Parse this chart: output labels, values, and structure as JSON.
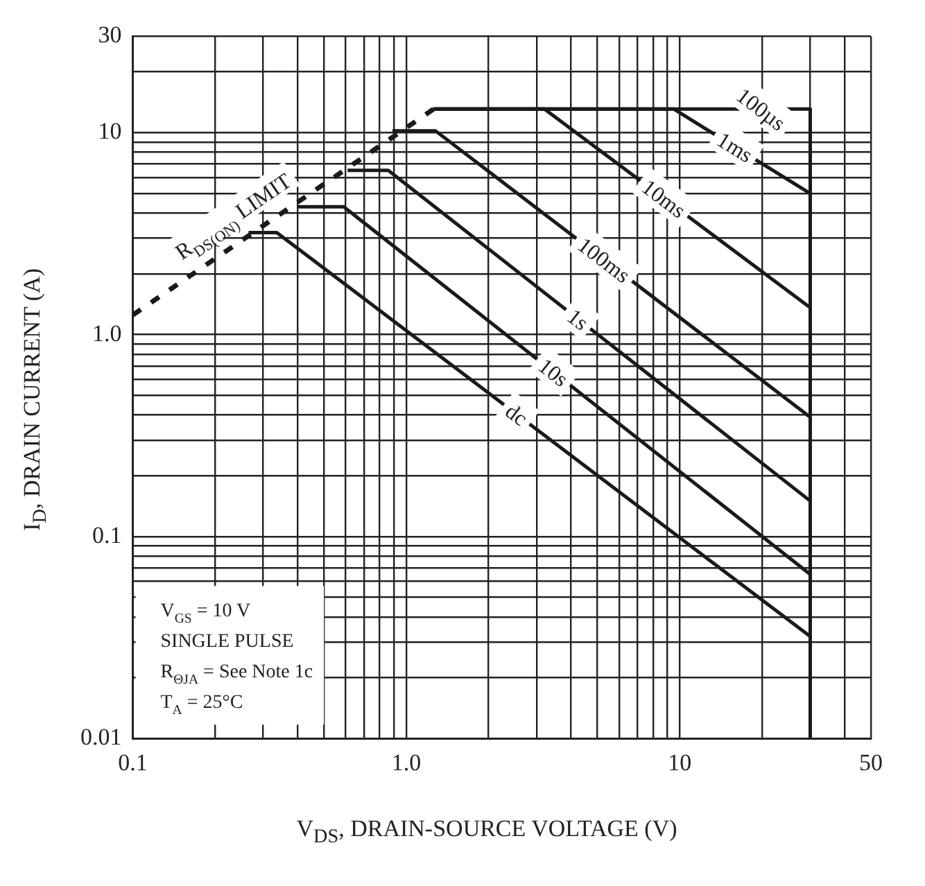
{
  "chart_data": {
    "type": "line",
    "xlabel": "V$_{DS}$, DRAIN-SOURCE VOLTAGE (V)",
    "ylabel": "I$_{D}$, DRAIN CURRENT (A)",
    "log": "xy",
    "grid": true,
    "legend": false,
    "marker": "none",
    "xlim": [
      0.1,
      50
    ],
    "ylim": [
      0.01,
      30
    ],
    "xticks": [
      {
        "value": 0.1,
        "label": "0.1"
      },
      {
        "value": 0.2,
        "label": null
      },
      {
        "value": 0.3,
        "label": null
      },
      {
        "value": 0.4,
        "label": null
      },
      {
        "value": 0.5,
        "label": null
      },
      {
        "value": 0.6,
        "label": null
      },
      {
        "value": 0.7,
        "label": null
      },
      {
        "value": 0.8,
        "label": null
      },
      {
        "value": 0.9,
        "label": null
      },
      {
        "value": 1,
        "label": "1.0"
      },
      {
        "value": 2,
        "label": null
      },
      {
        "value": 3,
        "label": null
      },
      {
        "value": 4,
        "label": null
      },
      {
        "value": 5,
        "label": null
      },
      {
        "value": 6,
        "label": null
      },
      {
        "value": 7,
        "label": null
      },
      {
        "value": 8,
        "label": null
      },
      {
        "value": 9,
        "label": null
      },
      {
        "value": 10,
        "label": "10"
      },
      {
        "value": 20,
        "label": null
      },
      {
        "value": 30,
        "label": null
      },
      {
        "value": 40,
        "label": null
      },
      {
        "value": 50,
        "label": "50"
      }
    ],
    "yticks": [
      {
        "value": 0.01,
        "label": "0.01"
      },
      {
        "value": 0.02,
        "label": null
      },
      {
        "value": 0.03,
        "label": null
      },
      {
        "value": 0.04,
        "label": null
      },
      {
        "value": 0.05,
        "label": null
      },
      {
        "value": 0.06,
        "label": null
      },
      {
        "value": 0.07,
        "label": null
      },
      {
        "value": 0.08,
        "label": null
      },
      {
        "value": 0.09,
        "label": null
      },
      {
        "value": 0.1,
        "label": "0.1"
      },
      {
        "value": 0.2,
        "label": null
      },
      {
        "value": 0.3,
        "label": null
      },
      {
        "value": 0.4,
        "label": null
      },
      {
        "value": 0.5,
        "label": null
      },
      {
        "value": 0.6,
        "label": null
      },
      {
        "value": 0.7,
        "label": null
      },
      {
        "value": 0.8,
        "label": null
      },
      {
        "value": 0.9,
        "label": null
      },
      {
        "value": 1,
        "label": "1.0"
      },
      {
        "value": 2,
        "label": null
      },
      {
        "value": 3,
        "label": null
      },
      {
        "value": 4,
        "label": null
      },
      {
        "value": 5,
        "label": null
      },
      {
        "value": 6,
        "label": null
      },
      {
        "value": 7,
        "label": null
      },
      {
        "value": 8,
        "label": null
      },
      {
        "value": 9,
        "label": null
      },
      {
        "value": 10,
        "label": "10"
      },
      {
        "value": 20,
        "label": null
      },
      {
        "value": 30,
        "label": "30"
      }
    ],
    "series": [
      {
        "name": "R$_{DS(ON)}$ LIMIT",
        "color": "#1a1a1a",
        "line_style": "dashed",
        "x": [
          0.1,
          1.26
        ],
        "values": [
          1.25,
          13.1
        ]
      },
      {
        "name": "100µs",
        "color": "#1a1a1a",
        "x": [
          1.26,
          30,
          30
        ],
        "values": [
          13.1,
          13.1,
          0.01
        ]
      },
      {
        "name": "1ms",
        "color": "#1a1a1a",
        "x": [
          1.26,
          9.5,
          30
        ],
        "values": [
          13.1,
          13.1,
          5.0
        ]
      },
      {
        "name": "10ms",
        "color": "#1a1a1a",
        "x": [
          1.26,
          3.2,
          30
        ],
        "values": [
          13.1,
          13.1,
          1.36
        ]
      },
      {
        "name": "100ms",
        "color": "#1a1a1a",
        "x": [
          0.89,
          1.28,
          30
        ],
        "values": [
          10.2,
          10.2,
          0.39
        ]
      },
      {
        "name": "1s",
        "color": "#1a1a1a",
        "x": [
          0.61,
          0.86,
          30
        ],
        "values": [
          6.5,
          6.5,
          0.15
        ]
      },
      {
        "name": "10s",
        "color": "#1a1a1a",
        "x": [
          0.4,
          0.59,
          30
        ],
        "values": [
          4.3,
          4.3,
          0.065
        ]
      },
      {
        "name": "dc",
        "color": "#1a1a1a",
        "x": [
          0.265,
          0.336,
          30
        ],
        "values": [
          3.2,
          3.2,
          0.032
        ]
      }
    ],
    "annotations": [
      "V$_{GS}$ = 10 V",
      "SINGLE PULSE",
      "R$_{ΘJA}$ = See Note 1c",
      "T$_{A}$ = 25°C"
    ]
  }
}
